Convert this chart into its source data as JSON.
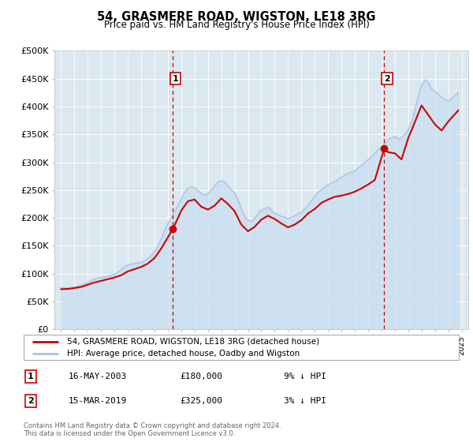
{
  "title": "54, GRASMERE ROAD, WIGSTON, LE18 3RG",
  "subtitle": "Price paid vs. HM Land Registry's House Price Index (HPI)",
  "ylabel_ticks": [
    "£0",
    "£50K",
    "£100K",
    "£150K",
    "£200K",
    "£250K",
    "£300K",
    "£350K",
    "£400K",
    "£450K",
    "£500K"
  ],
  "ytick_values": [
    0,
    50000,
    100000,
    150000,
    200000,
    250000,
    300000,
    350000,
    400000,
    450000,
    500000
  ],
  "ylim": [
    0,
    500000
  ],
  "xlim_start": 1994.5,
  "xlim_end": 2025.5,
  "hpi_color": "#aac4e0",
  "hpi_fill_color": "#c8ddf0",
  "price_color": "#cc0000",
  "vline_color": "#cc0000",
  "plot_bg_color": "#dce8f0",
  "grid_color": "#ffffff",
  "sale1_x": 2003.37,
  "sale1_y": 180000,
  "sale1_label": "1",
  "sale2_x": 2019.21,
  "sale2_y": 325000,
  "sale2_label": "2",
  "legend_line1": "54, GRASMERE ROAD, WIGSTON, LE18 3RG (detached house)",
  "legend_line2": "HPI: Average price, detached house, Oadby and Wigston",
  "table_row1": [
    "1",
    "16-MAY-2003",
    "£180,000",
    "9% ↓ HPI"
  ],
  "table_row2": [
    "2",
    "15-MAR-2019",
    "£325,000",
    "3% ↓ HPI"
  ],
  "footnote1": "Contains HM Land Registry data © Crown copyright and database right 2024.",
  "footnote2": "This data is licensed under the Open Government Licence v3.0.",
  "hpi_years": [
    1995.0,
    1995.25,
    1995.5,
    1995.75,
    1996.0,
    1996.25,
    1996.5,
    1996.75,
    1997.0,
    1997.25,
    1997.5,
    1997.75,
    1998.0,
    1998.25,
    1998.5,
    1998.75,
    1999.0,
    1999.25,
    1999.5,
    1999.75,
    2000.0,
    2000.25,
    2000.5,
    2000.75,
    2001.0,
    2001.25,
    2001.5,
    2001.75,
    2002.0,
    2002.25,
    2002.5,
    2002.75,
    2003.0,
    2003.25,
    2003.5,
    2003.75,
    2004.0,
    2004.25,
    2004.5,
    2004.75,
    2005.0,
    2005.25,
    2005.5,
    2005.75,
    2006.0,
    2006.25,
    2006.5,
    2006.75,
    2007.0,
    2007.25,
    2007.5,
    2007.75,
    2008.0,
    2008.25,
    2008.5,
    2008.75,
    2009.0,
    2009.25,
    2009.5,
    2009.75,
    2010.0,
    2010.25,
    2010.5,
    2010.75,
    2011.0,
    2011.25,
    2011.5,
    2011.75,
    2012.0,
    2012.25,
    2012.5,
    2012.75,
    2013.0,
    2013.25,
    2013.5,
    2013.75,
    2014.0,
    2014.25,
    2014.5,
    2014.75,
    2015.0,
    2015.25,
    2015.5,
    2015.75,
    2016.0,
    2016.25,
    2016.5,
    2016.75,
    2017.0,
    2017.25,
    2017.5,
    2017.75,
    2018.0,
    2018.25,
    2018.5,
    2018.75,
    2019.0,
    2019.25,
    2019.5,
    2019.75,
    2020.0,
    2020.25,
    2020.5,
    2020.75,
    2021.0,
    2021.25,
    2021.5,
    2021.75,
    2022.0,
    2022.25,
    2022.5,
    2022.75,
    2023.0,
    2023.25,
    2023.5,
    2023.75,
    2024.0,
    2024.25,
    2024.5,
    2024.75
  ],
  "hpi_values": [
    75000,
    74500,
    74000,
    75000,
    76000,
    77500,
    79000,
    81000,
    84000,
    87000,
    90000,
    92000,
    93000,
    94000,
    95500,
    97000,
    99000,
    102000,
    107000,
    112000,
    116000,
    117000,
    118000,
    119000,
    120000,
    123000,
    127000,
    132000,
    140000,
    150000,
    162000,
    177000,
    190000,
    200000,
    211000,
    222000,
    234000,
    246000,
    253000,
    256000,
    254000,
    249000,
    244000,
    241000,
    244000,
    250000,
    257000,
    264000,
    267000,
    264000,
    258000,
    250000,
    245000,
    233000,
    216000,
    202000,
    196000,
    194000,
    199000,
    207000,
    214000,
    217000,
    219000,
    214000,
    208000,
    206000,
    203000,
    201000,
    199000,
    201000,
    204000,
    207000,
    210000,
    216000,
    223000,
    231000,
    239000,
    246000,
    251000,
    256000,
    259000,
    263000,
    266000,
    269000,
    273000,
    277000,
    280000,
    282000,
    284000,
    290000,
    294000,
    300000,
    305000,
    310000,
    317000,
    322000,
    327000,
    334000,
    340000,
    344000,
    347000,
    342000,
    344000,
    350000,
    358000,
    373000,
    393000,
    418000,
    438000,
    448000,
    443000,
    432000,
    427000,
    422000,
    417000,
    412000,
    410000,
    414000,
    420000,
    425000
  ],
  "price_years": [
    1995.0,
    1995.5,
    1996.0,
    1996.5,
    1997.0,
    1997.5,
    1998.0,
    1998.5,
    1999.0,
    1999.5,
    2000.0,
    2000.5,
    2001.0,
    2001.5,
    2002.0,
    2002.5,
    2003.37,
    2004.0,
    2004.5,
    2005.0,
    2005.5,
    2006.0,
    2006.5,
    2007.0,
    2007.5,
    2008.0,
    2008.5,
    2009.0,
    2009.5,
    2010.0,
    2010.5,
    2011.0,
    2011.5,
    2012.0,
    2012.5,
    2013.0,
    2013.5,
    2014.0,
    2014.5,
    2015.0,
    2015.5,
    2016.0,
    2016.5,
    2017.0,
    2017.5,
    2018.0,
    2018.5,
    2019.21,
    2019.5,
    2020.0,
    2020.5,
    2021.0,
    2021.5,
    2022.0,
    2022.5,
    2023.0,
    2023.5,
    2024.0,
    2024.75
  ],
  "price_values": [
    72000,
    72500,
    74000,
    76000,
    80000,
    84000,
    87000,
    90000,
    93000,
    97000,
    104000,
    108000,
    112000,
    118000,
    128000,
    145000,
    180000,
    213000,
    230000,
    233000,
    220000,
    215000,
    222000,
    235000,
    225000,
    212000,
    188000,
    176000,
    184000,
    197000,
    204000,
    198000,
    190000,
    183000,
    188000,
    196000,
    208000,
    216000,
    227000,
    233000,
    238000,
    240000,
    243000,
    247000,
    253000,
    260000,
    268000,
    325000,
    318000,
    316000,
    305000,
    343000,
    372000,
    402000,
    385000,
    368000,
    357000,
    373000,
    393000
  ]
}
